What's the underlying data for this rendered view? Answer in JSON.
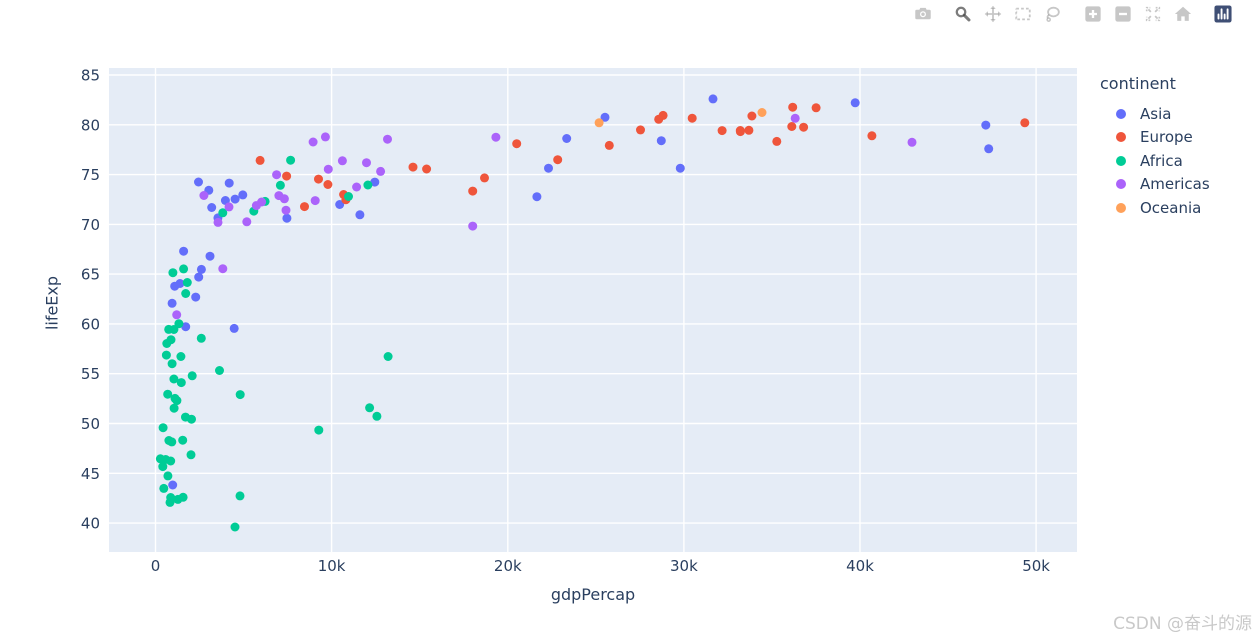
{
  "page": {
    "background": "#ffffff",
    "watermark": "CSDN @奋斗的源"
  },
  "modebar": {
    "icon_color": "rgba(68,68,68,0.3)",
    "active_icon_color": "rgba(68,68,68,0.7)",
    "logo_color": "#3F4F75",
    "groups": [
      {
        "buttons": [
          {
            "name": "download-png",
            "icon": "camera-icon"
          }
        ]
      },
      {
        "buttons": [
          {
            "name": "zoom",
            "icon": "magnifier-icon",
            "active": true
          },
          {
            "name": "pan",
            "icon": "pan-arrows-icon"
          },
          {
            "name": "box-select",
            "icon": "dashed-box-icon"
          },
          {
            "name": "lasso-select",
            "icon": "lasso-icon"
          }
        ]
      },
      {
        "buttons": [
          {
            "name": "zoom-in",
            "icon": "plus-square-icon"
          },
          {
            "name": "zoom-out",
            "icon": "minus-square-icon"
          },
          {
            "name": "autoscale",
            "icon": "expand-icon"
          },
          {
            "name": "reset-axes",
            "icon": "home-icon"
          }
        ]
      },
      {
        "buttons": [
          {
            "name": "plotly-logo",
            "icon": "plotly-logo-icon"
          }
        ]
      }
    ]
  },
  "chart_data": {
    "type": "scatter",
    "title": "",
    "xlabel": "gdpPercap",
    "ylabel": "lifeExp",
    "legend_title": "continent",
    "legend_position": "right",
    "grid": true,
    "plot_bgcolor": "#E5ECF6",
    "gridline_color": "#FFFFFF",
    "text_color": "#2A3F5F",
    "marker_size": 9,
    "x_range": [
      -2640,
      52320
    ],
    "y_range": [
      37.1,
      85.7
    ],
    "x_ticks": {
      "values": [
        0,
        10000,
        20000,
        30000,
        40000,
        50000
      ],
      "labels": [
        "0",
        "10k",
        "20k",
        "30k",
        "40k",
        "50k"
      ]
    },
    "y_ticks": {
      "values": [
        40,
        45,
        50,
        55,
        60,
        65,
        70,
        75,
        80,
        85
      ],
      "labels": [
        "40",
        "45",
        "50",
        "55",
        "60",
        "65",
        "70",
        "75",
        "80",
        "85"
      ]
    },
    "series": [
      {
        "name": "Asia",
        "color": "#636EFA",
        "points": [
          [
            975,
            43.83
          ],
          [
            29796,
            75.64
          ],
          [
            1391,
            64.06
          ],
          [
            1714,
            59.72
          ],
          [
            4959,
            72.96
          ],
          [
            39725,
            82.21
          ],
          [
            2452,
            64.7
          ],
          [
            3541,
            70.65
          ],
          [
            11606,
            70.96
          ],
          [
            4471,
            59.55
          ],
          [
            25523,
            80.75
          ],
          [
            31656,
            82.6
          ],
          [
            4519,
            72.54
          ],
          [
            1593,
            67.3
          ],
          [
            23348,
            78.62
          ],
          [
            47307,
            77.59
          ],
          [
            10461,
            71.99
          ],
          [
            12452,
            74.24
          ],
          [
            3096,
            66.8
          ],
          [
            944,
            62.07
          ],
          [
            1091,
            63.79
          ],
          [
            22316,
            75.64
          ],
          [
            2606,
            65.48
          ],
          [
            3190,
            71.69
          ],
          [
            21655,
            72.78
          ],
          [
            47143,
            79.97
          ],
          [
            3970,
            72.4
          ],
          [
            4185,
            74.14
          ],
          [
            28718,
            78.4
          ],
          [
            7458,
            70.62
          ],
          [
            2442,
            74.25
          ],
          [
            3025,
            73.42
          ],
          [
            2281,
            62.7
          ]
        ]
      },
      {
        "name": "Europe",
        "color": "#EF553B",
        "points": [
          [
            5937,
            76.42
          ],
          [
            36126,
            79.83
          ],
          [
            33693,
            79.44
          ],
          [
            7446,
            74.85
          ],
          [
            10680,
            73.0
          ],
          [
            14619,
            75.75
          ],
          [
            22833,
            76.49
          ],
          [
            35278,
            78.33
          ],
          [
            33207,
            79.31
          ],
          [
            30470,
            80.66
          ],
          [
            32170,
            79.41
          ],
          [
            27538,
            79.48
          ],
          [
            18009,
            73.34
          ],
          [
            36181,
            81.76
          ],
          [
            40676,
            78.89
          ],
          [
            28570,
            80.55
          ],
          [
            9254,
            74.54
          ],
          [
            36798,
            79.76
          ],
          [
            49357,
            80.2
          ],
          [
            15390,
            75.56
          ],
          [
            20510,
            78.1
          ],
          [
            10808,
            72.48
          ],
          [
            9787,
            74.0
          ],
          [
            18678,
            74.66
          ],
          [
            25768,
            77.93
          ],
          [
            28821,
            80.94
          ],
          [
            33860,
            80.88
          ],
          [
            37506,
            81.7
          ],
          [
            8458,
            71.78
          ],
          [
            33203,
            79.42
          ]
        ]
      },
      {
        "name": "Africa",
        "color": "#00CC96",
        "points": [
          [
            6223,
            72.3
          ],
          [
            4797,
            42.73
          ],
          [
            1441,
            56.73
          ],
          [
            12570,
            50.73
          ],
          [
            1217,
            52.3
          ],
          [
            430,
            49.58
          ],
          [
            2042,
            50.43
          ],
          [
            706,
            44.74
          ],
          [
            1704,
            50.65
          ],
          [
            986,
            65.15
          ],
          [
            278,
            46.46
          ],
          [
            3632,
            55.32
          ],
          [
            1545,
            48.33
          ],
          [
            2082,
            54.79
          ],
          [
            5581,
            71.33
          ],
          [
            12154,
            51.58
          ],
          [
            641,
            58.04
          ],
          [
            690,
            52.95
          ],
          [
            13206,
            56.73
          ],
          [
            752,
            59.45
          ],
          [
            1327,
            60.02
          ],
          [
            942,
            56.01
          ],
          [
            579,
            46.39
          ],
          [
            1463,
            54.11
          ],
          [
            1569,
            42.59
          ],
          [
            414,
            45.68
          ],
          [
            12057,
            73.95
          ],
          [
            1045,
            59.44
          ],
          [
            759,
            48.3
          ],
          [
            1042,
            54.47
          ],
          [
            1803,
            64.16
          ],
          [
            10957,
            72.8
          ],
          [
            3820,
            71.16
          ],
          [
            823,
            42.08
          ],
          [
            4811,
            52.91
          ],
          [
            619,
            56.87
          ],
          [
            2014,
            46.86
          ],
          [
            7670,
            76.44
          ],
          [
            863,
            46.24
          ],
          [
            1598,
            65.53
          ],
          [
            1712,
            63.06
          ],
          [
            862,
            42.57
          ],
          [
            926,
            48.16
          ],
          [
            9270,
            49.34
          ],
          [
            2602,
            58.56
          ],
          [
            4513,
            39.61
          ],
          [
            1107,
            52.52
          ],
          [
            883,
            58.42
          ],
          [
            7093,
            73.92
          ],
          [
            1056,
            51.54
          ],
          [
            1271,
            42.38
          ],
          [
            470,
            43.49
          ]
        ]
      },
      {
        "name": "Americas",
        "color": "#AB63FA",
        "points": [
          [
            12779,
            75.32
          ],
          [
            3822,
            65.55
          ],
          [
            9066,
            72.39
          ],
          [
            36319,
            80.65
          ],
          [
            13172,
            78.55
          ],
          [
            7007,
            72.89
          ],
          [
            9645,
            78.78
          ],
          [
            8948,
            78.27
          ],
          [
            6025,
            72.24
          ],
          [
            6873,
            74.99
          ],
          [
            5728,
            71.88
          ],
          [
            5186,
            70.26
          ],
          [
            1202,
            60.92
          ],
          [
            3548,
            70.2
          ],
          [
            7321,
            72.57
          ],
          [
            11978,
            76.19
          ],
          [
            2749,
            72.9
          ],
          [
            9809,
            75.54
          ],
          [
            4173,
            71.75
          ],
          [
            7409,
            71.42
          ],
          [
            19329,
            78.75
          ],
          [
            18009,
            69.82
          ],
          [
            42952,
            78.24
          ],
          [
            10611,
            76.38
          ],
          [
            11416,
            73.75
          ]
        ]
      },
      {
        "name": "Oceania",
        "color": "#FFA15A",
        "points": [
          [
            34435,
            81.23
          ],
          [
            25185,
            80.2
          ]
        ]
      }
    ]
  }
}
